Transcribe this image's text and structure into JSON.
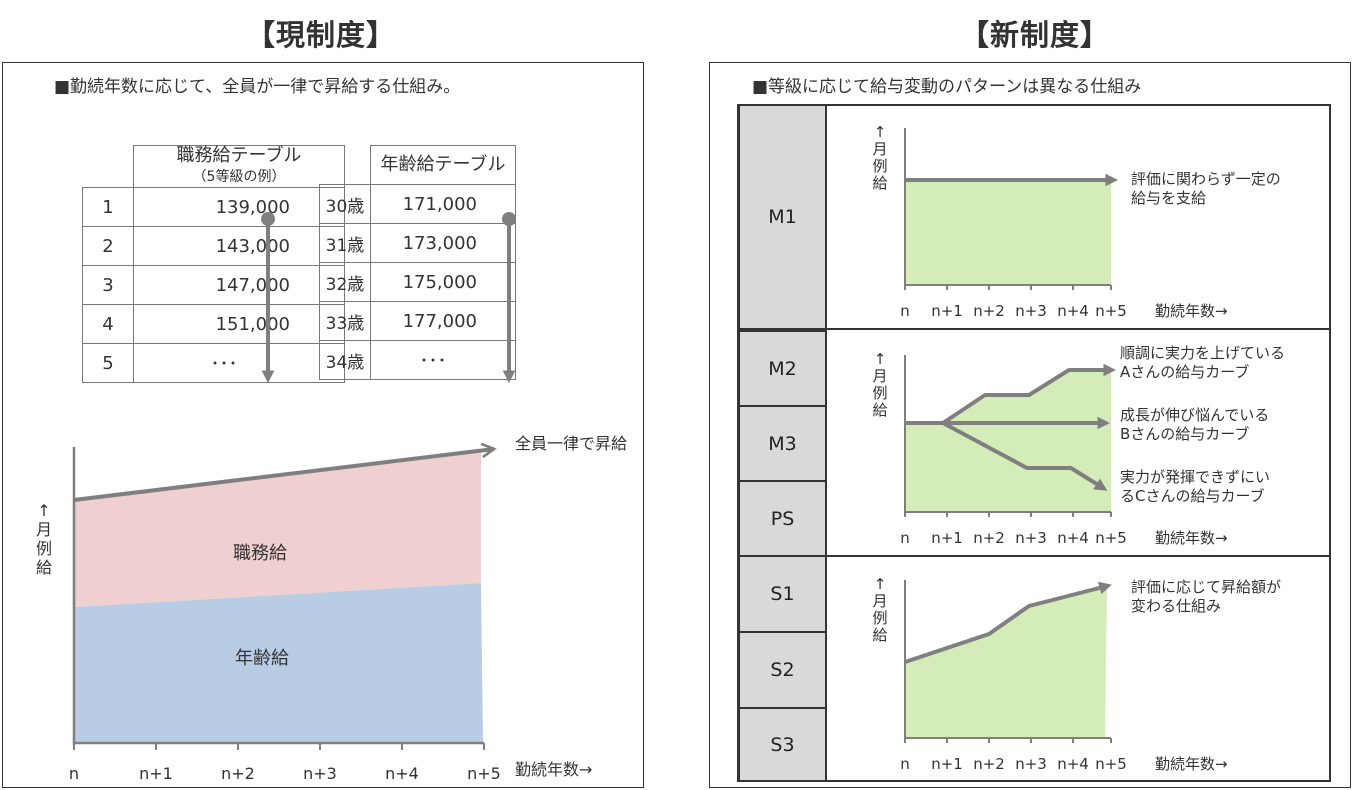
{
  "left": {
    "title": "【現制度】",
    "description": "■勤続年数に応じて、全員が一律で昇給する仕組み。",
    "job_table": {
      "header_line1": "職務給テーブル",
      "header_line2": "（5等級の例）",
      "rows": [
        {
          "grade": "1",
          "value": "139,000"
        },
        {
          "grade": "2",
          "value": "143,000"
        },
        {
          "grade": "3",
          "value": "147,000"
        },
        {
          "grade": "4",
          "value": "151,000"
        },
        {
          "grade": "5",
          "value": "･･･"
        }
      ]
    },
    "age_table": {
      "header": "年齢給テーブル",
      "rows": [
        {
          "age": "30歳",
          "value": "171,000"
        },
        {
          "age": "31歳",
          "value": "173,000"
        },
        {
          "age": "32歳",
          "value": "175,000"
        },
        {
          "age": "33歳",
          "value": "177,000"
        },
        {
          "age": "34歳",
          "value": "･･･"
        }
      ]
    },
    "chart": {
      "y_label": [
        "↑",
        "月",
        "例",
        "給"
      ],
      "x_label": "勤続年数→",
      "x_ticks": [
        "n",
        "n+1",
        "n+2",
        "n+3",
        "n+4",
        "n+5"
      ],
      "arrow_label": "全員一律で昇給",
      "area_job": "職務給",
      "area_age": "年齢給",
      "colors": {
        "job": "#efcfcf",
        "age": "#b8cce4",
        "line": "#7f7f7f"
      }
    }
  },
  "right": {
    "title": "【新制度】",
    "description": "■等級に応じて給与変動のパターンは異なる仕組み",
    "grades": [
      "M1",
      "M2",
      "M3",
      "PS",
      "S1",
      "S2",
      "S3"
    ],
    "y_label": [
      "↑",
      "月",
      "例",
      "給"
    ],
    "x_label": "勤続年数→",
    "x_ticks": [
      "n",
      "n+1",
      "n+2",
      "n+3",
      "n+4",
      "n+5"
    ],
    "colors": {
      "fill": "#d3ecb8",
      "line": "#7f7f7f",
      "grade_bg": "#d9d9d9"
    },
    "sections": [
      {
        "notes": [
          [
            "評価に関わらず一定の",
            "給与を支給"
          ]
        ]
      },
      {
        "notes": [
          [
            "順調に実力を上げている",
            "Aさんの給与カーブ"
          ],
          [
            "成長が伸び悩んでいる",
            "Bさんの給与カーブ"
          ],
          [
            "実力が発揮できずにい",
            "るCさんの給与カーブ"
          ]
        ]
      },
      {
        "notes": [
          [
            "評価に応じて昇給額が",
            "変わる仕組み"
          ]
        ]
      }
    ]
  }
}
